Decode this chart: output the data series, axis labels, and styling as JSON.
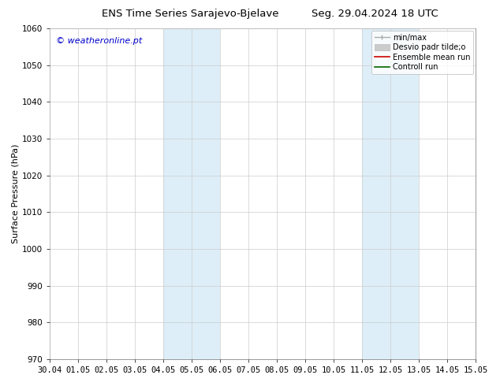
{
  "title_left": "ENS Time Series Sarajevo-Bjelave",
  "title_right": "Seg. 29.04.2024 18 UTC",
  "ylabel": "Surface Pressure (hPa)",
  "watermark": "© weatheronline.pt",
  "watermark_color": "#0000cc",
  "ylim": [
    970,
    1060
  ],
  "yticks": [
    970,
    980,
    990,
    1000,
    1010,
    1020,
    1030,
    1040,
    1050,
    1060
  ],
  "xtick_labels": [
    "30.04",
    "01.05",
    "02.05",
    "03.05",
    "04.05",
    "05.05",
    "06.05",
    "07.05",
    "08.05",
    "09.05",
    "10.05",
    "11.05",
    "12.05",
    "13.05",
    "14.05",
    "15.05"
  ],
  "shaded_bands": [
    {
      "xstart": 4,
      "xend": 6,
      "color": "#ddeef8"
    },
    {
      "xstart": 11,
      "xend": 13,
      "color": "#ddeef8"
    }
  ],
  "bg_color": "#ffffff",
  "grid_color": "#cccccc",
  "title_fontsize": 9.5,
  "label_fontsize": 8,
  "tick_fontsize": 7.5,
  "watermark_fontsize": 8,
  "legend_fontsize": 7,
  "figsize": [
    6.34,
    4.9
  ],
  "dpi": 100
}
